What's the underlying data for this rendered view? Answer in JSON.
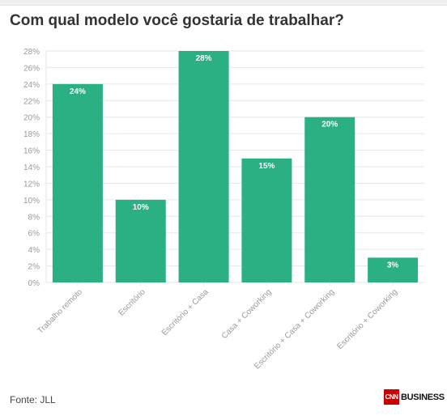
{
  "page": {
    "title": "Com qual modelo você gostaria de trabalhar?",
    "source": "Fonte: JLL",
    "logo": {
      "badge": "CNN",
      "word": "BUSINESS"
    }
  },
  "chart_data": {
    "type": "bar",
    "title": "Com qual modelo você gostaria de trabalhar?",
    "xlabel": "",
    "ylabel": "",
    "categories": [
      "Trabalho remoto",
      "Escritório",
      "Escritório + Casa",
      "Casa + Coworking",
      "Escritório + Casa + Coworking",
      "Escritório + Coworking"
    ],
    "values": [
      24,
      10,
      28,
      15,
      20,
      3
    ],
    "data_labels": [
      "24%",
      "10%",
      "28%",
      "15%",
      "20%",
      "3%"
    ],
    "ylim": [
      0,
      28
    ],
    "yticks": [
      0,
      2,
      4,
      6,
      8,
      10,
      12,
      14,
      16,
      18,
      20,
      22,
      24,
      26,
      28
    ],
    "ytick_labels": [
      "0%",
      "2%",
      "4%",
      "6%",
      "8%",
      "10%",
      "12%",
      "14%",
      "16%",
      "18%",
      "20%",
      "22%",
      "24%",
      "26%",
      "28%"
    ],
    "grid": true,
    "legend": "none",
    "bar_color": "#2bb083",
    "label_color": "#ffffff",
    "tick_color": "#9a9a9a",
    "grid_color": "#e6e6e6"
  }
}
